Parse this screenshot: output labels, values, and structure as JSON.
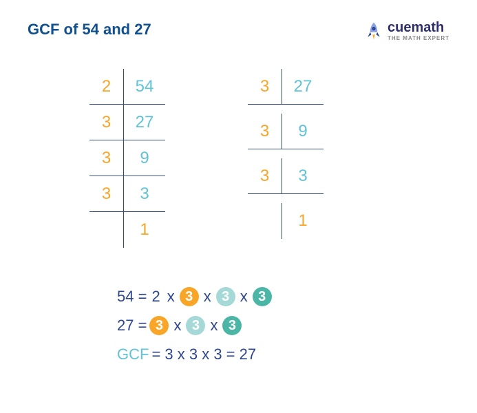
{
  "title": "GCF of 54 and 27",
  "colors": {
    "title": "#11508f",
    "orange": "#f8a528",
    "cyan": "#61c3d5",
    "navy": "#2e468c",
    "border": "#2e468c",
    "circle_orange": "#f8a528",
    "circle_teal_light": "#a4d9d8",
    "circle_teal_dark": "#4bb6a6"
  },
  "logo": {
    "name": "cuemath",
    "tagline": "THE MATH EXPERT"
  },
  "tables": {
    "left": {
      "rows": [
        {
          "factor": "2",
          "value": "54"
        },
        {
          "factor": "3",
          "value": "27"
        },
        {
          "factor": "3",
          "value": "9"
        },
        {
          "factor": "3",
          "value": "3"
        },
        {
          "factor": "",
          "value": "1"
        }
      ]
    },
    "right": {
      "rows": [
        {
          "factor": "3",
          "value": "27"
        },
        {
          "factor": "3",
          "value": "9"
        },
        {
          "factor": "3",
          "value": "3"
        },
        {
          "factor": "",
          "value": "1"
        }
      ]
    }
  },
  "equations": {
    "line1": {
      "lhs": "54",
      "parts": [
        {
          "text": "2",
          "circle": null
        },
        {
          "text": "x"
        },
        {
          "text": "3",
          "circle": "orange"
        },
        {
          "text": "x"
        },
        {
          "text": "3",
          "circle": "teal_light"
        },
        {
          "text": "x"
        },
        {
          "text": "3",
          "circle": "teal_dark"
        }
      ]
    },
    "line2": {
      "lhs": "27",
      "parts": [
        {
          "text": "3",
          "circle": "orange"
        },
        {
          "text": "x"
        },
        {
          "text": "3",
          "circle": "teal_light"
        },
        {
          "text": "x"
        },
        {
          "text": "3",
          "circle": "teal_dark"
        }
      ]
    },
    "result": {
      "label": "GCF",
      "expr": "3 x 3 x 3 = 27"
    }
  }
}
